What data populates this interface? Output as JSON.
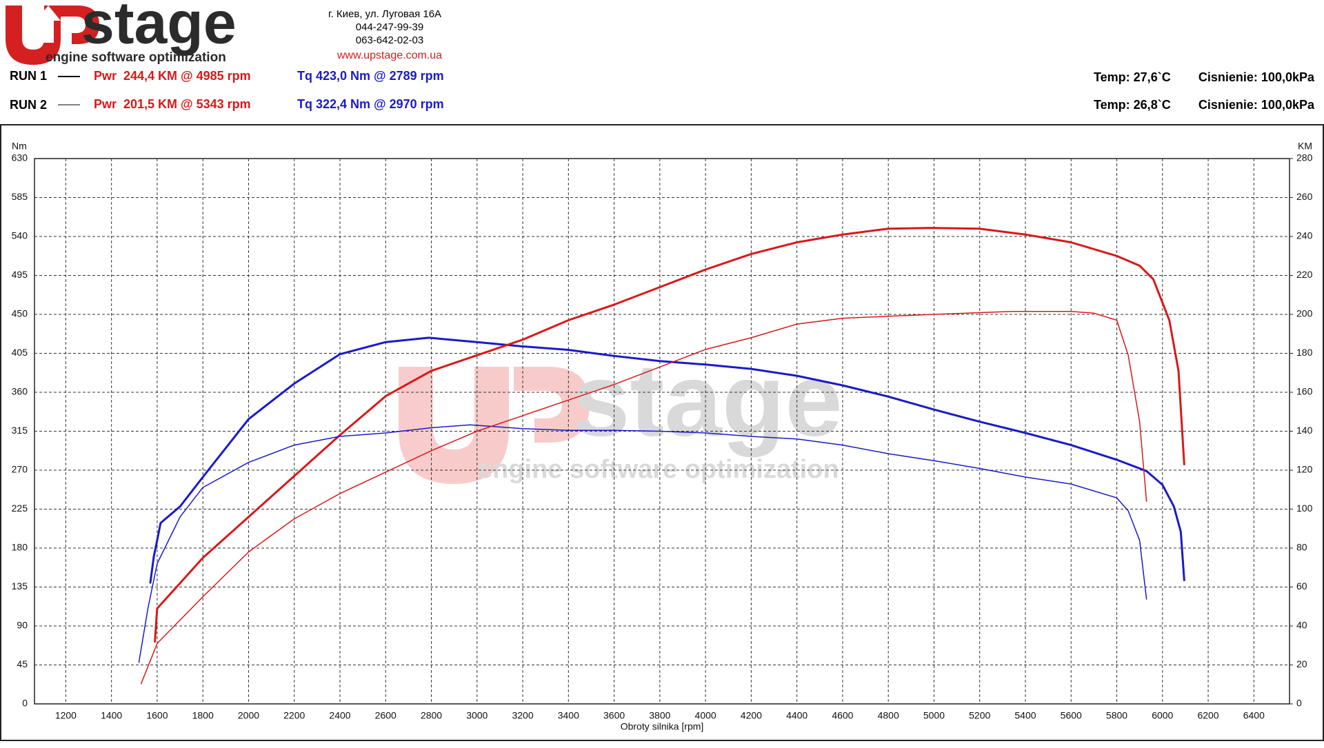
{
  "header": {
    "logo_text": "stage",
    "tagline": "engine software optimization",
    "address": [
      "г. Киев, ул. Луговая 16А",
      "044-247-99-39",
      "063-642-02-03"
    ],
    "website": "www.upstage.com.ua"
  },
  "runs": [
    {
      "label": "RUN 1",
      "power": "Pwr  244,4 KM @ 4985 rpm",
      "torque": "Tq 423,0 Nm @ 2789 rpm",
      "temp": "Temp: 27,6`C",
      "pressure": "Cisnienie: 100,0kPa"
    },
    {
      "label": "RUN 2",
      "power": "Pwr  201,5 KM @ 5343 rpm",
      "torque": "Tq 322,4 Nm @ 2970 rpm",
      "temp": "Temp: 26,8`C",
      "pressure": "Cisnienie: 100,0kPa"
    }
  ],
  "chart_data": {
    "type": "line",
    "ylabel": "Nm",
    "y2label": "KM",
    "xlabel": "Obroty silnika [rpm]",
    "xlim": [
      1063,
      6556
    ],
    "ylim": [
      0,
      630
    ],
    "y2lim": [
      0,
      280
    ],
    "grid": true,
    "xticks": [
      1200,
      1400,
      1600,
      1800,
      2000,
      2200,
      2400,
      2600,
      2800,
      3000,
      3200,
      3400,
      3600,
      3800,
      4000,
      4200,
      4400,
      4600,
      4800,
      5000,
      5200,
      5400,
      5600,
      5800,
      6000,
      6200,
      6400
    ],
    "yticks": [
      0,
      45,
      90,
      135,
      180,
      225,
      270,
      315,
      360,
      405,
      450,
      495,
      540,
      585,
      630
    ],
    "y2ticks": [
      0,
      20,
      40,
      60,
      80,
      100,
      120,
      140,
      160,
      180,
      200,
      220,
      240,
      260,
      280
    ],
    "series": [
      {
        "color": "#1a1ac8",
        "line_width": 3,
        "axis": "y",
        "x": [
          1570,
          1585,
          1600,
          1615,
          1700,
          1800,
          2000,
          2200,
          2400,
          2600,
          2789,
          3000,
          3200,
          3400,
          3600,
          3800,
          4000,
          4200,
          4400,
          4600,
          4800,
          5000,
          5200,
          5400,
          5600,
          5800,
          5930,
          6000,
          6050,
          6080,
          6095
        ],
        "values": [
          140,
          170,
          189,
          209,
          228,
          262,
          329,
          370,
          404,
          418,
          423,
          418,
          413,
          409,
          402,
          396,
          392,
          387,
          379,
          368,
          355,
          340,
          326,
          313,
          299,
          282,
          269,
          253,
          228,
          199,
          143
        ]
      },
      {
        "color": "#d81818",
        "line_width": 3,
        "axis": "y2",
        "x": [
          1590,
          1600,
          1700,
          1800,
          2000,
          2200,
          2400,
          2600,
          2800,
          3000,
          3200,
          3400,
          3600,
          3800,
          4000,
          4200,
          4400,
          4600,
          4800,
          4985,
          5200,
          5400,
          5600,
          5800,
          5900,
          5960,
          6030,
          6070,
          6095
        ],
        "values": [
          32,
          49,
          62,
          75,
          96,
          117,
          138,
          158,
          171,
          179,
          187,
          197,
          205,
          214,
          223,
          231,
          237,
          241,
          244,
          244.4,
          244,
          241,
          237,
          230,
          225,
          218,
          197,
          171,
          123
        ]
      },
      {
        "color": "#1a1ac8",
        "line_width": 1.5,
        "axis": "y",
        "x": [
          1520,
          1560,
          1600,
          1700,
          1800,
          2000,
          2200,
          2400,
          2600,
          2800,
          2970,
          3200,
          3400,
          3600,
          3800,
          4000,
          4200,
          4400,
          4600,
          4800,
          5000,
          5200,
          5400,
          5600,
          5800,
          5850,
          5900,
          5930
        ],
        "values": [
          48,
          111,
          162,
          216,
          250,
          279,
          299,
          309,
          313,
          319,
          322.4,
          318,
          316,
          316,
          315,
          313,
          309,
          306,
          299,
          289,
          281,
          272,
          262,
          254,
          238,
          223,
          189,
          121
        ]
      },
      {
        "color": "#d81818",
        "line_width": 1.5,
        "axis": "y2",
        "x": [
          1530,
          1600,
          1800,
          2000,
          2200,
          2400,
          2600,
          2800,
          3000,
          3200,
          3400,
          3600,
          3800,
          4000,
          4200,
          4400,
          4600,
          4800,
          5000,
          5343,
          5600,
          5700,
          5800,
          5850,
          5900,
          5930
        ],
        "values": [
          10.4,
          31,
          55,
          78,
          95,
          108,
          119,
          130,
          140,
          148,
          156,
          164,
          173,
          182,
          188,
          195,
          198,
          199,
          200,
          201.5,
          201.5,
          200.6,
          197,
          179,
          145,
          104
        ]
      }
    ]
  }
}
